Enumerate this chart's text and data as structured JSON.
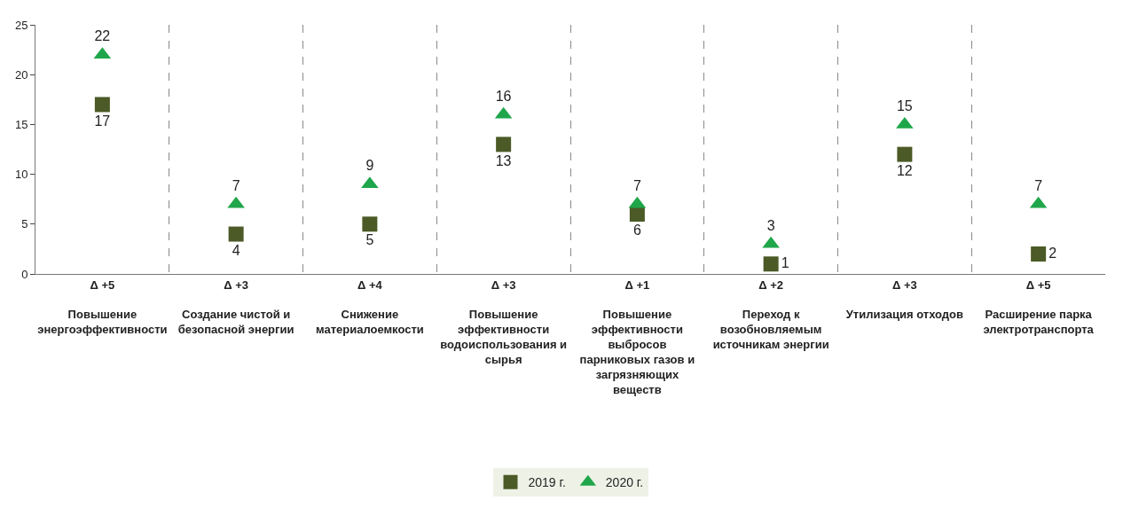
{
  "chart_data": {
    "type": "scatter",
    "categories": [
      "Δ +5\nПовышение\nэнергоэффективности",
      "Δ +3\nСоздание чистой и\nбезопасной энергии",
      "Δ +4\nСнижение\nматериалоемкости",
      "Δ +3\nПовышение\nэффективности\nводоиспользования и\nсырья",
      "Δ +1\nПовышение\nэффективности\nвыбросов\nпарниковых газов и\nзагрязняющих\nвеществ",
      "Δ +2\nПереход к\nвозобновляемым\nисточникам энергии",
      "Δ +3\nУтилизация отходов",
      "Δ +5\nРасширение парка\nэлектротранспорта"
    ],
    "series": [
      {
        "name": "2019 г.",
        "color": "#4b5a26",
        "marker": "square",
        "values": [
          17,
          4,
          5,
          13,
          6,
          1,
          12,
          2
        ]
      },
      {
        "name": "2020 г.",
        "color": "#1fa64a",
        "marker": "triangle",
        "values": [
          22,
          7,
          9,
          16,
          7,
          3,
          15,
          7
        ]
      }
    ],
    "ylim": [
      0,
      25
    ],
    "yticks": [
      0,
      5,
      10,
      15,
      20,
      25
    ],
    "grid": "x",
    "data_labels": true,
    "legend": "bottom"
  }
}
